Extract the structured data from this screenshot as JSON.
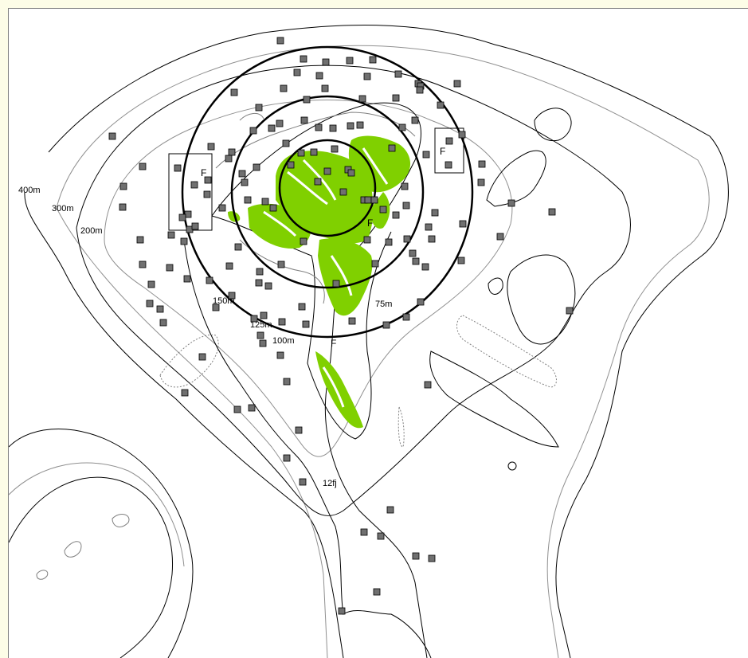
{
  "map": {
    "depth_labels": [
      "400m",
      "300m",
      "200m",
      "150m",
      "125m",
      "100m",
      "75m",
      "12fj"
    ],
    "zone_marker": "F",
    "colors": {
      "land": "#80d000",
      "markers": "#707070",
      "contours": "#000000",
      "grey_contours": "#909090",
      "background": "#ffffff",
      "frame": "#fdfde7"
    },
    "marker_shape": "square-icon",
    "ring_count": 3
  }
}
